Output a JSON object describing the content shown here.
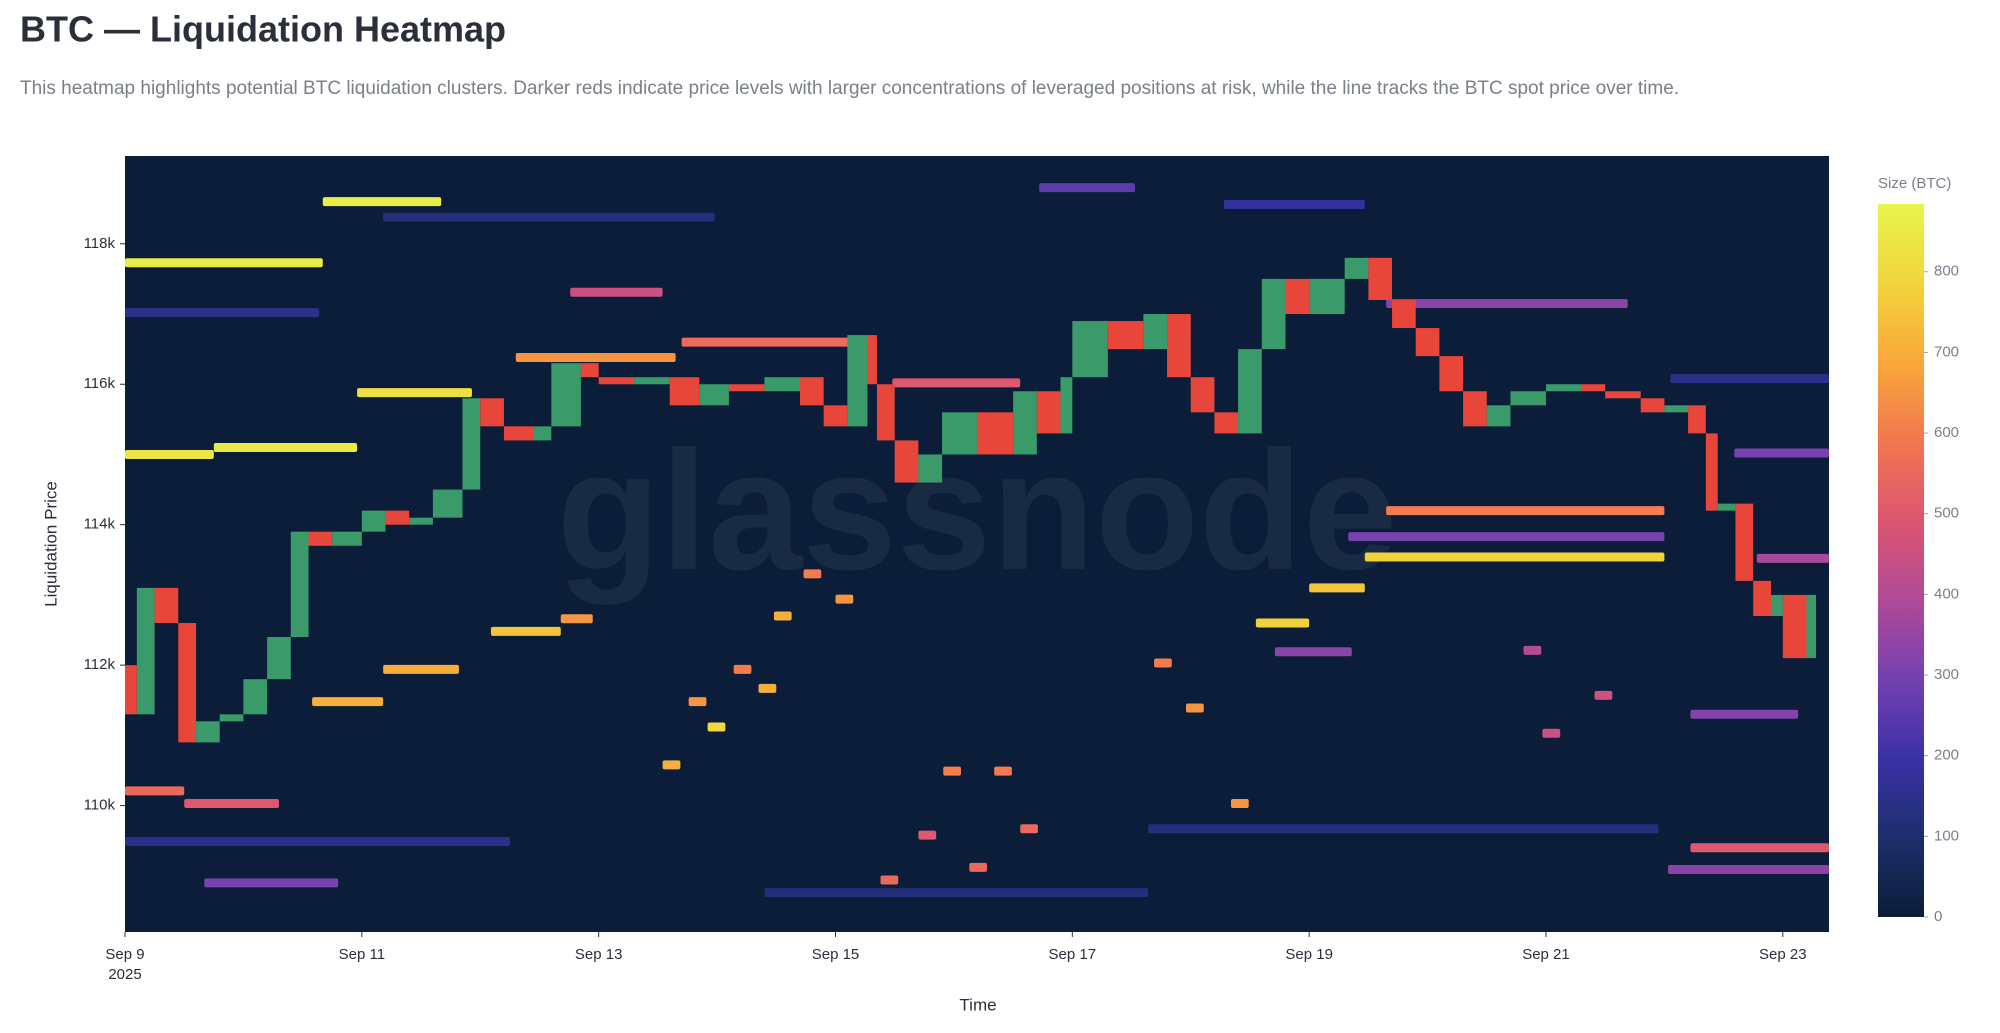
{
  "chart_data": {
    "type": "heatmap",
    "title": "BTC — Liquidation Heatmap",
    "subtitle": "This heatmap highlights potential BTC liquidation clusters. Darker reds indicate price levels with larger concentrations of leveraged positions at risk, while the line tracks the BTC spot price over time.",
    "watermark": "glassnode",
    "x_label": "Time",
    "y_label": "Liquidation Price",
    "colorbar_label": "Size (BTC)",
    "xlim": [
      9,
      23.39
    ],
    "xticks": [
      {
        "value": 9,
        "label": "Sep 9"
      },
      {
        "value": 11,
        "label": "Sep 11"
      },
      {
        "value": 13,
        "label": "Sep 13"
      },
      {
        "value": 15,
        "label": "Sep 15"
      },
      {
        "value": 17,
        "label": "Sep 17"
      },
      {
        "value": 19,
        "label": "Sep 19"
      },
      {
        "value": 21,
        "label": "Sep 21"
      },
      {
        "value": 23,
        "label": "Sep 23"
      }
    ],
    "x_year": "2025",
    "ylim": [
      108200,
      119250
    ],
    "yticks": [
      {
        "value": 110000,
        "label": "110k"
      },
      {
        "value": 112000,
        "label": "112k"
      },
      {
        "value": 114000,
        "label": "114k"
      },
      {
        "value": 116000,
        "label": "116k"
      },
      {
        "value": 118000,
        "label": "118k"
      }
    ],
    "zlim": [
      0,
      884
    ],
    "zticks": [
      0,
      100,
      200,
      300,
      400,
      500,
      600,
      700,
      800
    ],
    "colorscale": [
      "#0b1d38",
      "#1c2f6c",
      "#3a31a6",
      "#7440b0",
      "#b04a98",
      "#dc5670",
      "#f2764f",
      "#f8a83a",
      "#f2d43c",
      "#e6f54c"
    ],
    "up_color": "#3a9a6a",
    "down_color": "#e8463a",
    "segments": [
      {
        "x": [
          9.0,
          10.67
        ],
        "price": 117730,
        "size": 860
      },
      {
        "x": [
          10.67,
          11.67
        ],
        "price": 118600,
        "size": 860
      },
      {
        "x": [
          9.0,
          9.75
        ],
        "price": 115000,
        "size": 840
      },
      {
        "x": [
          9.75,
          10.96
        ],
        "price": 115100,
        "size": 850
      },
      {
        "x": [
          10.96,
          11.93
        ],
        "price": 115880,
        "size": 820
      },
      {
        "x": [
          12.3,
          13.65
        ],
        "price": 116380,
        "size": 650
      },
      {
        "x": [
          13.7,
          15.27
        ],
        "price": 116600,
        "size": 560
      },
      {
        "x": [
          12.76,
          13.54
        ],
        "price": 117310,
        "size": 450
      },
      {
        "x": [
          15.48,
          16.56
        ],
        "price": 116020,
        "size": 500
      },
      {
        "x": [
          19.65,
          21.69
        ],
        "price": 117150,
        "size": 330
      },
      {
        "x": [
          19.65,
          22.0
        ],
        "price": 114200,
        "size": 600
      },
      {
        "x": [
          19.47,
          22.0
        ],
        "price": 113540,
        "size": 780
      },
      {
        "x": [
          19.33,
          22.0
        ],
        "price": 113830,
        "size": 300
      },
      {
        "x": [
          22.22,
          23.39
        ],
        "price": 109400,
        "size": 500
      },
      {
        "x": [
          22.03,
          23.39
        ],
        "price": 109090,
        "size": 330
      },
      {
        "x": [
          22.22,
          23.13
        ],
        "price": 111300,
        "size": 320
      },
      {
        "x": [
          22.78,
          23.39
        ],
        "price": 113520,
        "size": 380
      },
      {
        "x": [
          22.59,
          23.39
        ],
        "price": 115020,
        "size": 300
      },
      {
        "x": [
          16.72,
          17.53
        ],
        "price": 118800,
        "size": 260
      },
      {
        "x": [
          9.67,
          10.8
        ],
        "price": 108900,
        "size": 300
      },
      {
        "x": [
          18.71,
          19.36
        ],
        "price": 112190,
        "size": 330
      },
      {
        "x": [
          18.55,
          19.0
        ],
        "price": 112600,
        "size": 780
      },
      {
        "x": [
          19.0,
          19.47
        ],
        "price": 113100,
        "size": 750
      },
      {
        "x": [
          10.58,
          11.18
        ],
        "price": 111480,
        "size": 700
      },
      {
        "x": [
          11.18,
          11.82
        ],
        "price": 111940,
        "size": 700
      },
      {
        "x": [
          12.09,
          12.68
        ],
        "price": 112480,
        "size": 750
      },
      {
        "x": [
          12.68,
          12.95
        ],
        "price": 112660,
        "size": 650
      },
      {
        "x": [
          9.0,
          9.5
        ],
        "price": 110210,
        "size": 550
      },
      {
        "x": [
          9.5,
          10.3
        ],
        "price": 110030,
        "size": 500
      },
      {
        "x": [
          14.48,
          14.63
        ],
        "price": 112700,
        "size": 700
      },
      {
        "x": [
          14.73,
          14.88
        ],
        "price": 113300,
        "size": 600
      },
      {
        "x": [
          15.0,
          15.15
        ],
        "price": 112940,
        "size": 650
      },
      {
        "x": [
          13.54,
          13.69
        ],
        "price": 110580,
        "size": 700
      },
      {
        "x": [
          13.76,
          13.91
        ],
        "price": 111480,
        "size": 650
      },
      {
        "x": [
          14.14,
          14.29
        ],
        "price": 111940,
        "size": 600
      },
      {
        "x": [
          14.35,
          14.5
        ],
        "price": 111670,
        "size": 700
      },
      {
        "x": [
          13.92,
          14.07
        ],
        "price": 111120,
        "size": 800
      },
      {
        "x": [
          17.69,
          17.84
        ],
        "price": 112030,
        "size": 600
      },
      {
        "x": [
          17.96,
          18.11
        ],
        "price": 111390,
        "size": 650
      },
      {
        "x": [
          18.34,
          18.49
        ],
        "price": 110030,
        "size": 650
      },
      {
        "x": [
          15.91,
          16.06
        ],
        "price": 110490,
        "size": 600
      },
      {
        "x": [
          16.34,
          16.49
        ],
        "price": 110490,
        "size": 600
      },
      {
        "x": [
          16.13,
          16.28
        ],
        "price": 109120,
        "size": 550
      },
      {
        "x": [
          16.56,
          16.71
        ],
        "price": 109670,
        "size": 550
      },
      {
        "x": [
          15.7,
          15.85
        ],
        "price": 109580,
        "size": 500
      },
      {
        "x": [
          15.38,
          15.53
        ],
        "price": 108940,
        "size": 550
      },
      {
        "x": [
          20.81,
          20.96
        ],
        "price": 112210,
        "size": 400
      },
      {
        "x": [
          21.41,
          21.56
        ],
        "price": 111570,
        "size": 450
      },
      {
        "x": [
          20.97,
          21.12
        ],
        "price": 111030,
        "size": 450
      },
      {
        "x": [
          9.0,
          10.64
        ],
        "price": 117020,
        "size": 150
      },
      {
        "x": [
          11.18,
          13.98
        ],
        "price": 118380,
        "size": 120
      },
      {
        "x": [
          18.28,
          19.47
        ],
        "price": 118560,
        "size": 180
      },
      {
        "x": [
          22.05,
          23.39
        ],
        "price": 116080,
        "size": 150
      },
      {
        "x": [
          9.0,
          12.25
        ],
        "price": 109490,
        "size": 150
      },
      {
        "x": [
          17.64,
          21.95
        ],
        "price": 109670,
        "size": 120
      },
      {
        "x": [
          14.4,
          17.64
        ],
        "price": 108760,
        "size": 120
      }
    ],
    "price": {
      "name": "BTC spot price",
      "x": [
        9.0,
        9.1,
        9.25,
        9.45,
        9.6,
        9.8,
        10.0,
        10.2,
        10.4,
        10.55,
        10.75,
        11.0,
        11.2,
        11.4,
        11.6,
        11.85,
        12.0,
        12.2,
        12.45,
        12.6,
        12.85,
        13.0,
        13.3,
        13.6,
        13.85,
        14.1,
        14.4,
        14.7,
        14.9,
        15.1,
        15.27,
        15.35,
        15.5,
        15.7,
        15.9,
        16.2,
        16.5,
        16.7,
        16.9,
        17.0,
        17.3,
        17.6,
        17.8,
        18.0,
        18.2,
        18.4,
        18.6,
        18.8,
        19.0,
        19.3,
        19.5,
        19.7,
        19.9,
        20.1,
        20.3,
        20.5,
        20.7,
        21.0,
        21.3,
        21.5,
        21.8,
        22.0,
        22.2,
        22.35,
        22.45,
        22.6,
        22.75,
        22.9,
        23.0,
        23.2,
        23.28
      ],
      "values": [
        112000,
        111300,
        113100,
        112600,
        110900,
        111200,
        111300,
        111800,
        112400,
        113900,
        113700,
        113900,
        114200,
        114000,
        114100,
        114500,
        115800,
        115400,
        115200,
        115400,
        116300,
        116100,
        116000,
        116100,
        115700,
        116000,
        115900,
        116100,
        115700,
        115400,
        116700,
        116000,
        115200,
        114600,
        115000,
        115600,
        115000,
        115900,
        115300,
        116100,
        116900,
        116500,
        117000,
        116100,
        115600,
        115300,
        116500,
        117500,
        117000,
        117500,
        117800,
        117200,
        116800,
        116400,
        115900,
        115400,
        115700,
        115900,
        116000,
        115900,
        115800,
        115600,
        115700,
        115300,
        114200,
        114300,
        113200,
        112700,
        113000,
        112100,
        113000
      ]
    }
  }
}
